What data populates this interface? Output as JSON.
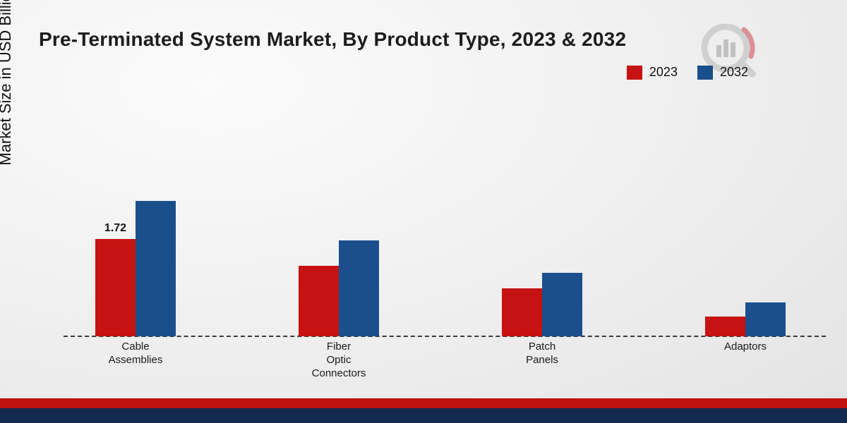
{
  "title": "Pre-Terminated System Market, By Product Type, 2023 & 2032",
  "ylabel": "Market Size in USD Billion",
  "colors": {
    "red": "#c61212",
    "blue": "#1a4f8c",
    "stripe_red": "#c01010",
    "stripe_navy": "#13294f"
  },
  "legend": {
    "position": "top-right",
    "items": [
      "2023",
      "2032"
    ]
  },
  "chart_data": {
    "type": "bar",
    "title": "Pre-Terminated System Market, By Product Type, 2023 & 2032",
    "xlabel": "",
    "ylabel": "Market Size in USD Billion",
    "ylim": [
      0,
      2.6
    ],
    "grid": false,
    "baseline_style": "dashed",
    "categories": [
      "Cable Assemblies",
      "Fiber Optic Connectors",
      "Patch Panels",
      "Adaptors"
    ],
    "categories_display": [
      "Cable\nAssemblies",
      "Fiber\nOptic\nConnectors",
      "Patch\nPanels",
      "Adaptors"
    ],
    "series": [
      {
        "name": "2023",
        "color": "#c61212",
        "values": [
          1.72,
          1.25,
          0.85,
          0.35
        ]
      },
      {
        "name": "2032",
        "color": "#1a4f8c",
        "values": [
          2.4,
          1.7,
          1.12,
          0.6
        ]
      }
    ],
    "annotations": [
      {
        "series_index": 0,
        "category_index": 0,
        "text": "1.72"
      }
    ]
  }
}
